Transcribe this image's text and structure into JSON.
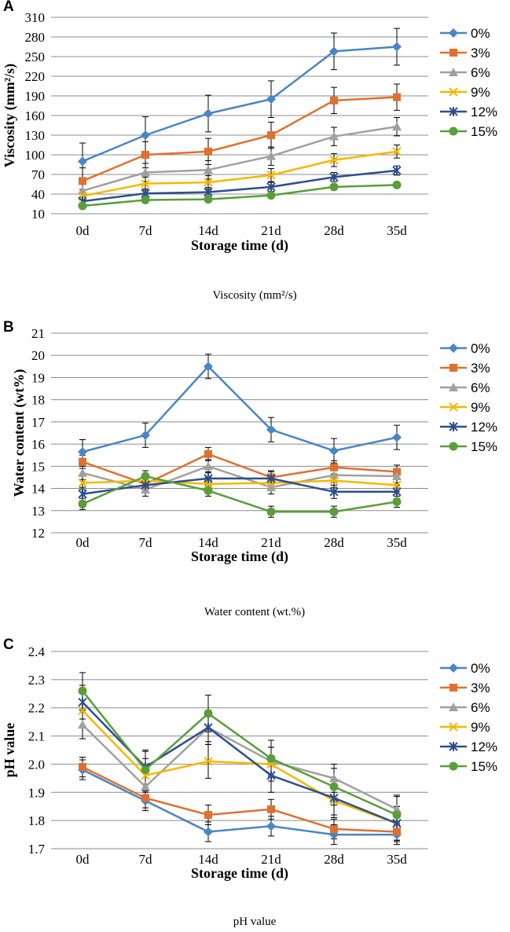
{
  "chart_data": [
    {
      "type": "line",
      "panel": "A",
      "title": "",
      "xlabel": "Storage time (d)",
      "ylabel": "Viscosity (mm²/s)",
      "caption": "Viscosity (mm²/s)",
      "ylim": [
        10,
        310
      ],
      "yticks": [
        10,
        40,
        70,
        100,
        130,
        160,
        190,
        220,
        250,
        280,
        310
      ],
      "ytick_labels": [
        "10",
        "40",
        "70",
        "100",
        "130",
        "160",
        "190",
        "220",
        "250",
        "280",
        "310"
      ],
      "tick_decimals": 0,
      "categories": [
        "0d",
        "7d",
        "14d",
        "21d",
        "28d",
        "35d"
      ],
      "grid": true,
      "legend": "right",
      "series": [
        {
          "name": "0%",
          "color": "#4a85c4",
          "marker": "diamond",
          "values": [
            90,
            130,
            163,
            185,
            258,
            265
          ],
          "errors": [
            28,
            28,
            28,
            28,
            28,
            28
          ]
        },
        {
          "name": "3%",
          "color": "#e07030",
          "marker": "square",
          "values": [
            60,
            100,
            105,
            130,
            183,
            188
          ],
          "errors": [
            20,
            20,
            20,
            20,
            20,
            20
          ]
        },
        {
          "name": "6%",
          "color": "#a0a0a0",
          "marker": "triangle",
          "values": [
            45,
            73,
            77,
            98,
            128,
            143
          ],
          "errors": [
            14,
            14,
            14,
            14,
            14,
            14
          ]
        },
        {
          "name": "9%",
          "color": "#f5b800",
          "marker": "x",
          "values": [
            37,
            56,
            58,
            69,
            92,
            105
          ],
          "errors": [
            10,
            10,
            10,
            10,
            10,
            10
          ]
        },
        {
          "name": "12%",
          "color": "#2c4e8e",
          "marker": "star",
          "values": [
            29,
            41,
            43,
            51,
            66,
            76
          ],
          "errors": [
            7,
            7,
            7,
            7,
            7,
            7
          ]
        },
        {
          "name": "15%",
          "color": "#5a9e3a",
          "marker": "circle",
          "values": [
            22,
            31,
            32,
            38,
            51,
            54
          ],
          "errors": [
            4,
            4,
            4,
            4,
            4,
            4
          ]
        }
      ]
    },
    {
      "type": "line",
      "panel": "B",
      "title": "",
      "xlabel": "Storage time (d)",
      "ylabel": "Water content (wt%)",
      "caption": "Water content (wt.%)",
      "ylim": [
        12,
        21
      ],
      "yticks": [
        12,
        13,
        14,
        15,
        16,
        17,
        18,
        19,
        20,
        21
      ],
      "ytick_labels": [
        "12",
        "13",
        "14",
        "15",
        "16",
        "17",
        "18",
        "19",
        "20",
        "21"
      ],
      "tick_decimals": 0,
      "categories": [
        "0d",
        "7d",
        "14d",
        "21d",
        "28d",
        "35d"
      ],
      "grid": true,
      "legend": "right",
      "series": [
        {
          "name": "0%",
          "color": "#4a85c4",
          "marker": "diamond",
          "values": [
            15.65,
            16.4,
            19.5,
            16.65,
            15.7,
            16.3
          ],
          "errors": [
            0.55,
            0.55,
            0.55,
            0.55,
            0.55,
            0.55
          ]
        },
        {
          "name": "3%",
          "color": "#e07030",
          "marker": "square",
          "values": [
            15.2,
            14.2,
            15.55,
            14.5,
            14.95,
            14.75
          ],
          "errors": [
            0.3,
            0.3,
            0.3,
            0.3,
            0.3,
            0.3
          ]
        },
        {
          "name": "6%",
          "color": "#a0a0a0",
          "marker": "triangle",
          "values": [
            14.7,
            13.95,
            15.0,
            14.05,
            14.6,
            14.55
          ],
          "errors": [
            0.3,
            0.3,
            0.3,
            0.3,
            0.3,
            0.3
          ]
        },
        {
          "name": "9%",
          "color": "#f5b800",
          "marker": "x",
          "values": [
            14.25,
            14.35,
            14.2,
            14.25,
            14.35,
            14.15
          ],
          "errors": [
            0.3,
            0.3,
            0.3,
            0.3,
            0.3,
            0.3
          ]
        },
        {
          "name": "12%",
          "color": "#2c4e8e",
          "marker": "star",
          "values": [
            13.75,
            14.15,
            14.45,
            14.45,
            13.85,
            13.85
          ],
          "errors": [
            0.3,
            0.3,
            0.3,
            0.3,
            0.3,
            0.3
          ]
        },
        {
          "name": "15%",
          "color": "#5a9e3a",
          "marker": "circle",
          "values": [
            13.3,
            14.55,
            13.9,
            12.95,
            12.95,
            13.4
          ],
          "errors": [
            0.25,
            0.25,
            0.25,
            0.25,
            0.25,
            0.25
          ]
        }
      ]
    },
    {
      "type": "line",
      "panel": "C",
      "title": "",
      "xlabel": "Storage time (d)",
      "ylabel": "pH value",
      "caption": "pH value",
      "ylim": [
        1.7,
        2.4
      ],
      "yticks": [
        1.7,
        1.8,
        1.9,
        2.0,
        2.1,
        2.2,
        2.3,
        2.4
      ],
      "ytick_labels": [
        "1.7",
        "1.8",
        "1.9",
        "2.0",
        "2.1",
        "2.2",
        "2.3",
        "2.4"
      ],
      "tick_decimals": 1,
      "categories": [
        "0d",
        "7d",
        "14d",
        "21d",
        "28d",
        "35d"
      ],
      "grid": true,
      "legend": "right",
      "series": [
        {
          "name": "0%",
          "color": "#4a85c4",
          "marker": "diamond",
          "values": [
            1.98,
            1.87,
            1.76,
            1.78,
            1.75,
            1.75
          ],
          "errors": [
            0.035,
            0.035,
            0.035,
            0.035,
            0.035,
            0.035
          ]
        },
        {
          "name": "3%",
          "color": "#e07030",
          "marker": "square",
          "values": [
            1.99,
            1.88,
            1.82,
            1.84,
            1.77,
            1.76
          ],
          "errors": [
            0.035,
            0.035,
            0.035,
            0.035,
            0.035,
            0.035
          ]
        },
        {
          "name": "6%",
          "color": "#a0a0a0",
          "marker": "triangle",
          "values": [
            2.14,
            1.92,
            2.13,
            2.01,
            1.95,
            1.84
          ],
          "errors": [
            0.05,
            0.05,
            0.05,
            0.05,
            0.05,
            0.05
          ]
        },
        {
          "name": "9%",
          "color": "#f5b800",
          "marker": "x",
          "values": [
            2.19,
            1.96,
            2.01,
            2.0,
            1.87,
            1.79
          ],
          "errors": [
            0.06,
            0.06,
            0.06,
            0.06,
            0.06,
            0.06
          ]
        },
        {
          "name": "12%",
          "color": "#2c4e8e",
          "marker": "star",
          "values": [
            2.22,
            1.99,
            2.13,
            1.96,
            1.88,
            1.79
          ],
          "errors": [
            0.06,
            0.06,
            0.06,
            0.06,
            0.06,
            0.06
          ]
        },
        {
          "name": "15%",
          "color": "#5a9e3a",
          "marker": "circle",
          "values": [
            2.26,
            1.98,
            2.18,
            2.02,
            1.92,
            1.82
          ],
          "errors": [
            0.065,
            0.065,
            0.065,
            0.065,
            0.065,
            0.065
          ]
        }
      ]
    }
  ]
}
